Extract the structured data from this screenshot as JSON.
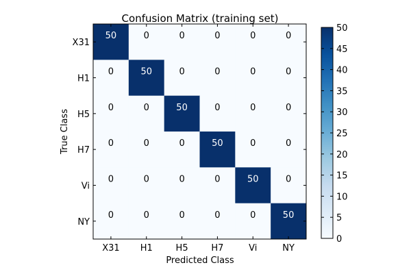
{
  "chart_data": {
    "type": "heatmap",
    "title": "Confusion Matrix (training set)",
    "xlabel": "Predicted Class",
    "ylabel": "True Class",
    "x_categories": [
      "X31",
      "H1",
      "H5",
      "H7",
      "Vi",
      "NY"
    ],
    "y_categories": [
      "X31",
      "H1",
      "H5",
      "H7",
      "Vi",
      "NY"
    ],
    "values": [
      [
        50,
        0,
        0,
        0,
        0,
        0
      ],
      [
        0,
        50,
        0,
        0,
        0,
        0
      ],
      [
        0,
        0,
        50,
        0,
        0,
        0
      ],
      [
        0,
        0,
        0,
        50,
        0,
        0
      ],
      [
        0,
        0,
        0,
        0,
        50,
        0
      ],
      [
        0,
        0,
        0,
        0,
        0,
        50
      ]
    ],
    "colormap": "Blues",
    "colors": {
      "low": "#f7fbff",
      "high": "#08306b"
    },
    "colorbar": {
      "range": [
        0,
        50
      ],
      "ticks": [
        "0",
        "5",
        "10",
        "15",
        "20",
        "25",
        "30",
        "35",
        "40",
        "45",
        "50"
      ]
    }
  }
}
